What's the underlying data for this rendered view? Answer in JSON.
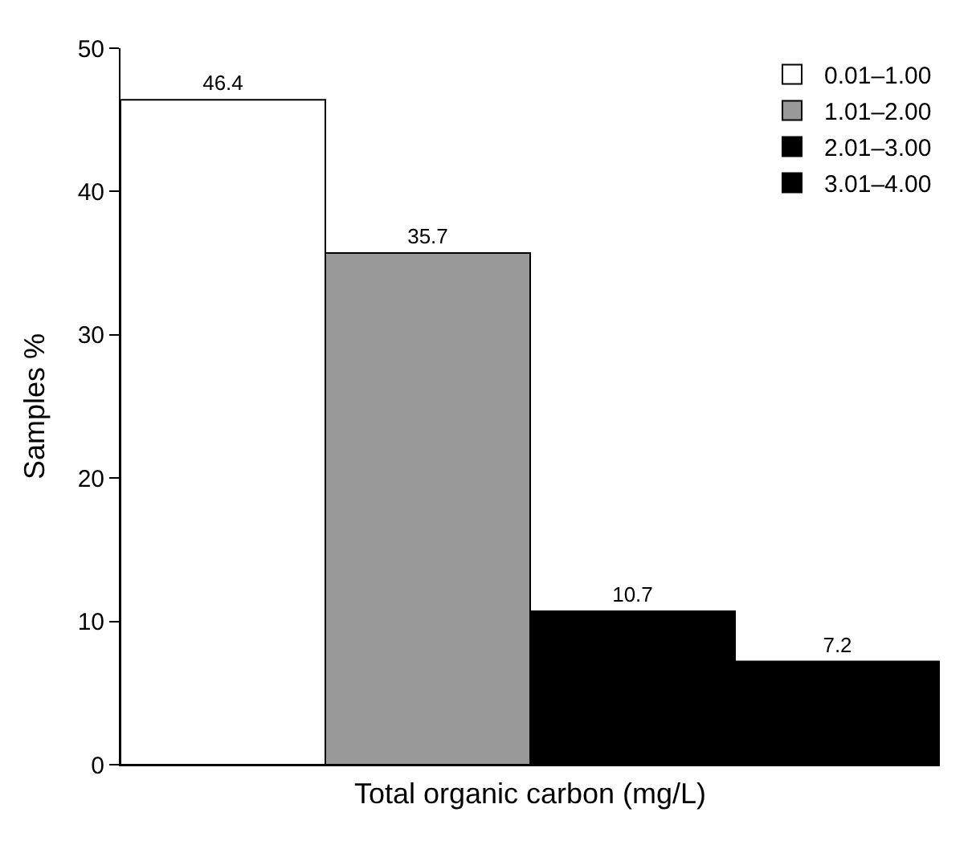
{
  "chart_data": {
    "type": "bar",
    "xlabel": "Total organic carbon (mg/L)",
    "ylabel": "Samples %",
    "categories": [
      null,
      null,
      null,
      null
    ],
    "series": [
      {
        "name": "0.01–1.00",
        "color": "#ffffff",
        "values": [
          46.4,
          null,
          null,
          null
        ]
      },
      {
        "name": "1.01–2.00",
        "color": "#999999",
        "values": [
          null,
          35.7,
          null,
          null
        ]
      },
      {
        "name": "2.01–3.00",
        "color": "#000000",
        "values": [
          null,
          null,
          10.7,
          null
        ]
      },
      {
        "name": "3.01–4.00",
        "color": "#000000",
        "values": [
          null,
          null,
          null,
          7.2
        ]
      }
    ],
    "ylim": [
      0,
      50
    ],
    "yticks": [
      0,
      10,
      20,
      30,
      40,
      50
    ],
    "legend": "top right",
    "data_labels": true
  }
}
